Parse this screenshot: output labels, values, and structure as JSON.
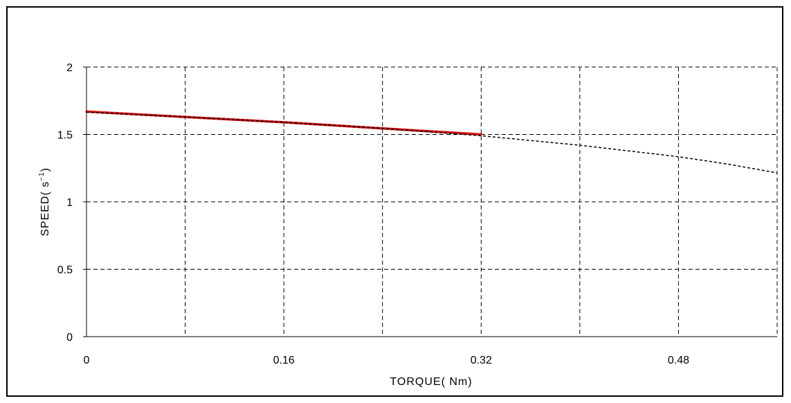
{
  "chart_data": {
    "type": "line",
    "title": "",
    "xlabel": "TORQUE( Nm)",
    "ylabel": "SPEED( s⁻¹)",
    "ylabel_main": "SPEED( s",
    "ylabel_sup": "−1",
    "ylabel_close": ")",
    "xlim": [
      0,
      0.56
    ],
    "ylim": [
      0,
      2
    ],
    "x_ticks": [
      0,
      0.16,
      0.32,
      0.48
    ],
    "x_tick_labels": [
      "0",
      "0.16",
      "0.32",
      "0.48"
    ],
    "x_gridlines": [
      0,
      0.08,
      0.16,
      0.24,
      0.32,
      0.4,
      0.48,
      0.56
    ],
    "y_ticks": [
      0,
      0.5,
      1,
      1.5,
      2
    ],
    "y_tick_labels": [
      "0",
      "0.5",
      "1",
      "1.5",
      "2"
    ],
    "grid": true,
    "series": [
      {
        "style": "solid",
        "color": "#d01010",
        "x": [
          0,
          0.08,
          0.16,
          0.24,
          0.32
        ],
        "y": [
          1.67,
          1.63,
          1.59,
          1.545,
          1.5
        ]
      },
      {
        "style": "dashed",
        "color": "#000000",
        "x": [
          0,
          0.08,
          0.16,
          0.24,
          0.32,
          0.4,
          0.48,
          0.52,
          0.56
        ],
        "y": [
          1.665,
          1.63,
          1.59,
          1.545,
          1.49,
          1.42,
          1.335,
          1.28,
          1.215
        ]
      }
    ]
  }
}
